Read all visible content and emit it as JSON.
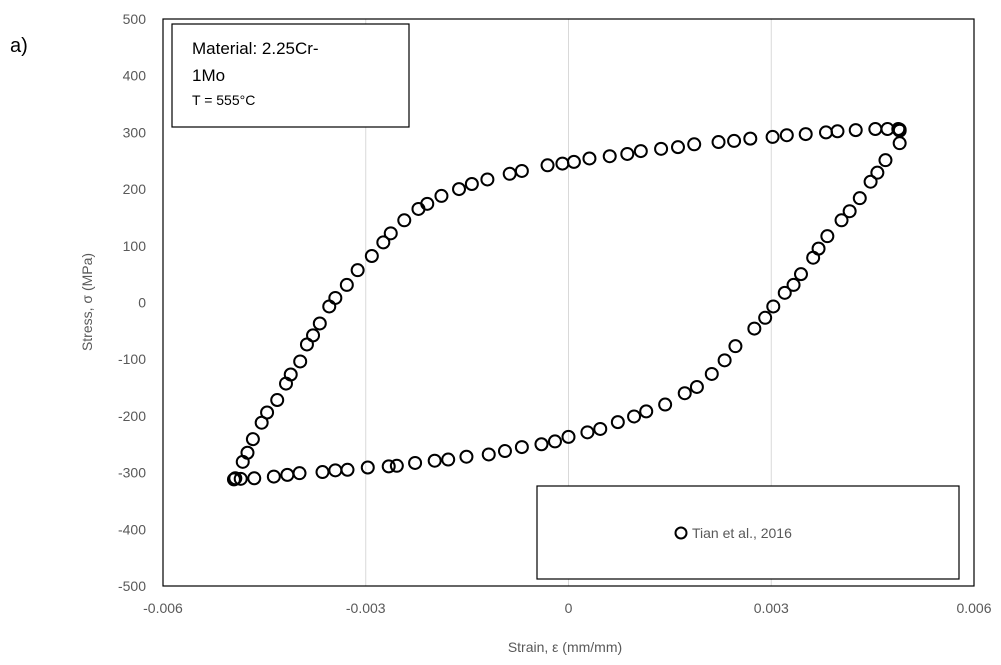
{
  "panel_label": "a)",
  "info_box": {
    "line1": "Material: 2.25Cr-",
    "line2": "1Mo",
    "line3": "T = 555°C"
  },
  "chart_data": {
    "type": "scatter",
    "xlabel": "Strain, ε (mm/mm)",
    "ylabel": "Stress, σ (MPa)",
    "xlim": [
      -0.006,
      0.006
    ],
    "ylim": [
      -500,
      500
    ],
    "x_ticks": [
      -0.006,
      -0.003,
      0,
      0.003,
      0.006
    ],
    "x_tick_labels": [
      "-0.006",
      "-0.003",
      "0",
      "0.003",
      "0.006"
    ],
    "y_ticks": [
      -500,
      -400,
      -300,
      -200,
      -100,
      0,
      100,
      200,
      300,
      400,
      500
    ],
    "y_tick_labels": [
      "-500",
      "-400",
      "-300",
      "-200",
      "-100",
      "0",
      "100",
      "200",
      "300",
      "400",
      "500"
    ],
    "grid": "vertical",
    "legend_position": "bottom-right",
    "marker": "open-circle",
    "marker_color": "#000000",
    "series": [
      {
        "name": "Tian et al., 2016",
        "points": [
          [
            0.0049,
            305
          ],
          [
            0.0049,
            303
          ],
          [
            0.0049,
            281
          ],
          [
            0.00469,
            251
          ],
          [
            0.00457,
            229
          ],
          [
            0.00447,
            213
          ],
          [
            0.00431,
            184
          ],
          [
            0.00416,
            161
          ],
          [
            0.00404,
            145
          ],
          [
            0.00383,
            117
          ],
          [
            0.0037,
            95
          ],
          [
            0.00362,
            79
          ],
          [
            0.00344,
            50
          ],
          [
            0.00333,
            31
          ],
          [
            0.0032,
            17
          ],
          [
            0.00303,
            -7
          ],
          [
            0.00291,
            -27
          ],
          [
            0.00275,
            -46
          ],
          [
            0.00247,
            -77
          ],
          [
            0.00231,
            -102
          ],
          [
            0.00212,
            -126
          ],
          [
            0.0019,
            -149
          ],
          [
            0.00172,
            -160
          ],
          [
            0.00143,
            -180
          ],
          [
            0.00115,
            -192
          ],
          [
            0.00097,
            -201
          ],
          [
            0.00073,
            -211
          ],
          [
            0.00047,
            -223
          ],
          [
            0.00028,
            -229
          ],
          [
            0.0,
            -237
          ],
          [
            -0.0002,
            -245
          ],
          [
            -0.0004,
            -250
          ],
          [
            -0.00069,
            -255
          ],
          [
            -0.00094,
            -262
          ],
          [
            -0.00118,
            -268
          ],
          [
            -0.00151,
            -272
          ],
          [
            -0.00178,
            -277
          ],
          [
            -0.00198,
            -279
          ],
          [
            -0.00227,
            -283
          ],
          [
            -0.00254,
            -288
          ],
          [
            -0.00266,
            -289
          ],
          [
            -0.00297,
            -291
          ],
          [
            -0.00327,
            -295
          ],
          [
            -0.00345,
            -296
          ],
          [
            -0.00364,
            -299
          ],
          [
            -0.00398,
            -301
          ],
          [
            -0.00416,
            -304
          ],
          [
            -0.00436,
            -307
          ],
          [
            -0.00465,
            -310
          ],
          [
            -0.00485,
            -311
          ],
          [
            -0.00495,
            -312
          ],
          [
            -0.00493,
            -310
          ],
          [
            -0.00482,
            -281
          ],
          [
            -0.00475,
            -265
          ],
          [
            -0.00467,
            -241
          ],
          [
            -0.00454,
            -212
          ],
          [
            -0.00446,
            -194
          ],
          [
            -0.00431,
            -172
          ],
          [
            -0.00418,
            -143
          ],
          [
            -0.00411,
            -127
          ],
          [
            -0.00397,
            -104
          ],
          [
            -0.00387,
            -74
          ],
          [
            -0.00378,
            -58
          ],
          [
            -0.00368,
            -37
          ],
          [
            -0.00354,
            -7
          ],
          [
            -0.00345,
            8
          ],
          [
            -0.00328,
            31
          ],
          [
            -0.00312,
            57
          ],
          [
            -0.00291,
            82
          ],
          [
            -0.00274,
            106
          ],
          [
            -0.00263,
            122
          ],
          [
            -0.00243,
            145
          ],
          [
            -0.00222,
            165
          ],
          [
            -0.00209,
            174
          ],
          [
            -0.00188,
            188
          ],
          [
            -0.00162,
            200
          ],
          [
            -0.00143,
            209
          ],
          [
            -0.0012,
            217
          ],
          [
            -0.00087,
            227
          ],
          [
            -0.00069,
            232
          ],
          [
            -0.00031,
            242
          ],
          [
            -9e-05,
            245
          ],
          [
            8e-05,
            248
          ],
          [
            0.00031,
            254
          ],
          [
            0.00061,
            258
          ],
          [
            0.00087,
            262
          ],
          [
            0.00107,
            267
          ],
          [
            0.00137,
            271
          ],
          [
            0.00162,
            274
          ],
          [
            0.00186,
            279
          ],
          [
            0.00222,
            283
          ],
          [
            0.00245,
            285
          ],
          [
            0.00269,
            289
          ],
          [
            0.00302,
            292
          ],
          [
            0.00323,
            295
          ],
          [
            0.00351,
            297
          ],
          [
            0.00381,
            300
          ],
          [
            0.00398,
            302
          ],
          [
            0.00425,
            304
          ],
          [
            0.00454,
            306
          ],
          [
            0.00472,
            306
          ],
          [
            0.00488,
            306
          ]
        ]
      }
    ]
  }
}
